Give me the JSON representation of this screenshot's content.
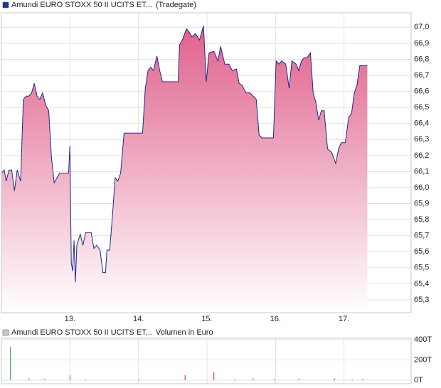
{
  "chart_data": [
    {
      "type": "area",
      "legend_text": "Amundi EURO STOXX 50 II UCITS ET...",
      "source": "(Tradegate)",
      "legend_color": "#1a3a8a",
      "color": "#1a2a8a",
      "fill_color": "#e0608c",
      "x": [
        12.0,
        12.04,
        12.07,
        12.11,
        12.15,
        12.19,
        12.23,
        12.28,
        12.32,
        12.36,
        12.4,
        12.44,
        12.48,
        12.52,
        12.56,
        12.6,
        12.65,
        12.69,
        12.73,
        12.77,
        12.81,
        12.85,
        12.98,
        13.0,
        13.02,
        13.04,
        13.06,
        13.08,
        13.1,
        13.15,
        13.19,
        13.23,
        13.31,
        13.35,
        13.39,
        13.44,
        13.48,
        13.52,
        13.54,
        13.58,
        13.62,
        13.66,
        13.7,
        13.74,
        13.79,
        14.06,
        14.1,
        14.14,
        14.18,
        14.22,
        14.27,
        14.31,
        14.35,
        14.58,
        14.6,
        14.64,
        14.7,
        14.74,
        14.78,
        14.83,
        14.89,
        14.95,
        14.99,
        15.03,
        15.1,
        15.16,
        15.2,
        15.26,
        15.32,
        15.37,
        15.43,
        15.47,
        15.51,
        15.57,
        15.63,
        15.72,
        15.76,
        15.8,
        15.97,
        16.01,
        16.05,
        16.09,
        16.15,
        16.2,
        16.24,
        16.3,
        16.34,
        16.38,
        16.42,
        16.46,
        16.51,
        16.55,
        16.59,
        16.63,
        16.67,
        16.71,
        16.76,
        16.82,
        16.88,
        16.92,
        16.96,
        17.02,
        17.07,
        17.11,
        17.15,
        17.19,
        17.23,
        17.27,
        17.34
      ],
      "values": [
        66.09,
        66.11,
        66.04,
        66.11,
        66.11,
        65.98,
        66.11,
        66.04,
        66.55,
        66.57,
        66.57,
        66.59,
        66.65,
        66.57,
        66.55,
        66.59,
        66.51,
        66.48,
        66.19,
        66.03,
        66.06,
        66.09,
        66.09,
        66.26,
        65.53,
        65.48,
        65.67,
        65.41,
        65.64,
        65.71,
        65.64,
        65.72,
        65.72,
        65.62,
        65.64,
        65.61,
        65.47,
        65.47,
        65.61,
        65.61,
        65.82,
        66.06,
        66.04,
        66.09,
        66.34,
        66.34,
        66.62,
        66.73,
        66.75,
        66.73,
        66.82,
        66.73,
        66.66,
        66.66,
        66.89,
        66.92,
        66.99,
        66.97,
        66.94,
        66.96,
        66.92,
        67.01,
        66.66,
        66.84,
        66.85,
        66.79,
        66.88,
        66.77,
        66.77,
        66.73,
        66.74,
        66.65,
        66.64,
        66.59,
        66.59,
        66.55,
        66.33,
        66.31,
        66.31,
        66.79,
        66.77,
        66.79,
        66.77,
        66.62,
        66.79,
        66.77,
        66.73,
        66.79,
        66.81,
        66.81,
        66.84,
        66.59,
        66.53,
        66.42,
        66.48,
        66.48,
        66.24,
        66.22,
        66.15,
        66.24,
        66.28,
        66.28,
        66.44,
        66.46,
        66.59,
        66.64,
        66.76,
        66.76,
        66.76
      ],
      "xlim": [
        12.0,
        17.98
      ],
      "ylim": [
        65.22,
        67.09
      ],
      "xticks": [
        {
          "value": 13,
          "label": "13."
        },
        {
          "value": 14,
          "label": "14."
        },
        {
          "value": 15,
          "label": "15."
        },
        {
          "value": 16,
          "label": "16."
        },
        {
          "value": 17,
          "label": "17."
        }
      ],
      "yticks": [
        {
          "value": 65.3,
          "label": "65,3"
        },
        {
          "value": 65.4,
          "label": "65,4"
        },
        {
          "value": 65.5,
          "label": "65,5"
        },
        {
          "value": 65.6,
          "label": "65,6"
        },
        {
          "value": 65.7,
          "label": "65,7"
        },
        {
          "value": 65.8,
          "label": "65,8"
        },
        {
          "value": 65.9,
          "label": "65,9"
        },
        {
          "value": 66.0,
          "label": "66,0"
        },
        {
          "value": 66.1,
          "label": "66,1"
        },
        {
          "value": 66.2,
          "label": "66,2"
        },
        {
          "value": 66.3,
          "label": "66,3"
        },
        {
          "value": 66.4,
          "label": "66,4"
        },
        {
          "value": 66.5,
          "label": "66,5"
        },
        {
          "value": 66.6,
          "label": "66,6"
        },
        {
          "value": 66.7,
          "label": "66,7"
        },
        {
          "value": 66.8,
          "label": "66,8"
        },
        {
          "value": 66.9,
          "label": "66,9"
        },
        {
          "value": 67.0,
          "label": "67,0"
        }
      ],
      "grid": true
    },
    {
      "type": "bar",
      "legend_text": "Amundi EURO STOXX 50 II UCITS ET...",
      "label": "Volumen in Euro",
      "legend_color": "#c8c8c8",
      "x": [
        12.13,
        12.4,
        12.63,
        13.0,
        13.23,
        14.01,
        14.68,
        15.1,
        15.41,
        15.67,
        15.98,
        16.34,
        16.86,
        17.12,
        17.27
      ],
      "values": [
        330,
        20,
        15,
        50,
        10,
        15,
        50,
        80,
        15,
        20,
        15,
        15,
        20,
        10,
        15
      ],
      "colors": [
        "#4caf50",
        "#999999",
        "#999999",
        "#4caf50",
        "#999999",
        "#999999",
        "#e53935",
        "#e53935",
        "#999999",
        "#999999",
        "#999999",
        "#4caf50",
        "#4caf50",
        "#999999",
        "#999999"
      ],
      "xlim": [
        12.0,
        17.98
      ],
      "ylim": [
        0,
        400
      ],
      "xticks": [
        13,
        14,
        15,
        16,
        17
      ],
      "yticks": [
        {
          "value": 0,
          "label": "0T"
        },
        {
          "value": 200,
          "label": "200T"
        },
        {
          "value": 400,
          "label": "400T"
        }
      ],
      "grid": true
    }
  ]
}
